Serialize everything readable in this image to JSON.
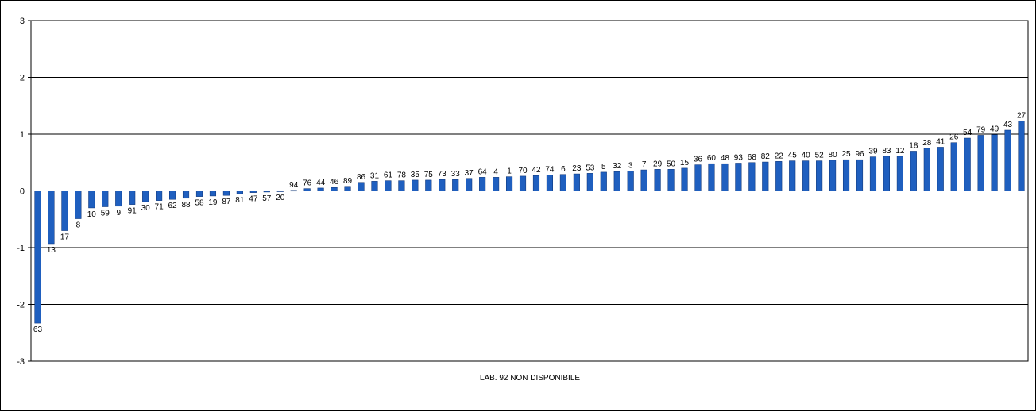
{
  "chart_data": {
    "type": "bar",
    "categories": [
      "63",
      "13",
      "17",
      "8",
      "10",
      "59",
      "9",
      "91",
      "30",
      "71",
      "62",
      "88",
      "58",
      "19",
      "87",
      "81",
      "47",
      "57",
      "20",
      "94",
      "76",
      "44",
      "46",
      "89",
      "86",
      "31",
      "61",
      "78",
      "35",
      "75",
      "73",
      "33",
      "37",
      "64",
      "4",
      "1",
      "70",
      "42",
      "74",
      "6",
      "23",
      "53",
      "5",
      "32",
      "3",
      "7",
      "29",
      "50",
      "15",
      "36",
      "60",
      "48",
      "93",
      "68",
      "82",
      "22",
      "45",
      "40",
      "52",
      "80",
      "25",
      "96",
      "39",
      "83",
      "12",
      "18",
      "28",
      "41",
      "26",
      "54",
      "79",
      "49",
      "43",
      "27"
    ],
    "values": [
      -2.33,
      -0.93,
      -0.7,
      -0.49,
      -0.3,
      -0.28,
      -0.27,
      -0.24,
      -0.19,
      -0.17,
      -0.15,
      -0.13,
      -0.1,
      -0.09,
      -0.08,
      -0.05,
      -0.03,
      -0.02,
      -0.01,
      0.01,
      0.04,
      0.05,
      0.06,
      0.08,
      0.15,
      0.17,
      0.18,
      0.18,
      0.19,
      0.19,
      0.2,
      0.2,
      0.22,
      0.24,
      0.24,
      0.25,
      0.26,
      0.27,
      0.28,
      0.29,
      0.3,
      0.31,
      0.33,
      0.34,
      0.35,
      0.37,
      0.38,
      0.38,
      0.4,
      0.46,
      0.48,
      0.48,
      0.49,
      0.5,
      0.51,
      0.52,
      0.53,
      0.53,
      0.53,
      0.54,
      0.55,
      0.55,
      0.6,
      0.61,
      0.61,
      0.7,
      0.75,
      0.77,
      0.85,
      0.93,
      0.98,
      0.99,
      1.07,
      1.23
    ],
    "ylim": [
      -3,
      3
    ],
    "yticks": [
      "-3",
      "-2",
      "-1",
      "0",
      "1",
      "2",
      "3"
    ],
    "grid": true,
    "bar_color": "#1F5FBF",
    "note": "LAB. 92 NON DISPONIBILE"
  }
}
